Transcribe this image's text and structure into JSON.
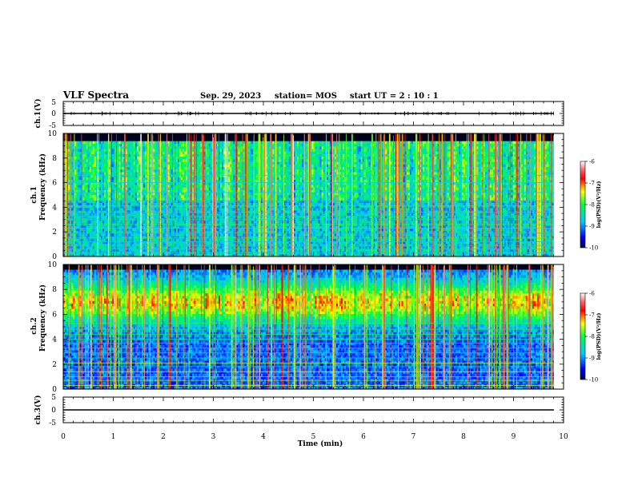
{
  "header": {
    "title": "VLF Spectra",
    "date": "Sep. 29, 2023",
    "station": "station= MOS",
    "start_time": "start  UT =   2 : 10 : 1"
  },
  "chart_data": [
    {
      "type": "line",
      "panel": "ch1-waveform",
      "ylabel": "ch.1(V)",
      "ylim": [
        -5,
        5
      ],
      "yticks": [
        "5",
        "0",
        "-5"
      ],
      "xlim": [
        0,
        10
      ],
      "series_level": 0
    },
    {
      "type": "heatmap",
      "panel": "ch1-spectrogram",
      "ylabel": "ch.1\nFrequency (kHz)",
      "ylabel_line1": "ch.1",
      "ylabel_line2": "Frequency (kHz)",
      "ylim": [
        0,
        10
      ],
      "yticks": [
        "0",
        "2",
        "4",
        "6",
        "8",
        "10"
      ],
      "xlim": [
        0,
        10
      ],
      "data_end_min": 9.8,
      "colorbar": {
        "label": "log(PSD)(V²/Hz)",
        "range": [
          -10,
          -6
        ],
        "ticks": [
          "-6",
          "-7",
          "-8",
          "-9",
          "-10"
        ]
      }
    },
    {
      "type": "heatmap",
      "panel": "ch2-spectrogram",
      "ylabel_line1": "ch.2",
      "ylabel_line2": "Frequency (kHz)",
      "ylim": [
        0,
        10
      ],
      "yticks": [
        "0",
        "2",
        "4",
        "6",
        "8",
        "10"
      ],
      "xlim": [
        0,
        10
      ],
      "data_end_min": 9.8,
      "colorbar": {
        "label": "log(PSD)(V²/Hz)",
        "range": [
          -10,
          -6
        ],
        "ticks": [
          "-6",
          "-7",
          "-8",
          "-9",
          "-10"
        ]
      }
    },
    {
      "type": "line",
      "panel": "ch3-waveform",
      "ylabel": "ch.3(V)",
      "ylim": [
        -5,
        5
      ],
      "yticks": [
        "5",
        "0",
        "-5"
      ],
      "xlim": [
        0,
        10
      ],
      "xlabel": "Time  (min)",
      "xticks": [
        "0",
        "1",
        "2",
        "3",
        "4",
        "5",
        "6",
        "7",
        "8",
        "9",
        "10"
      ],
      "series_level": 0
    }
  ]
}
